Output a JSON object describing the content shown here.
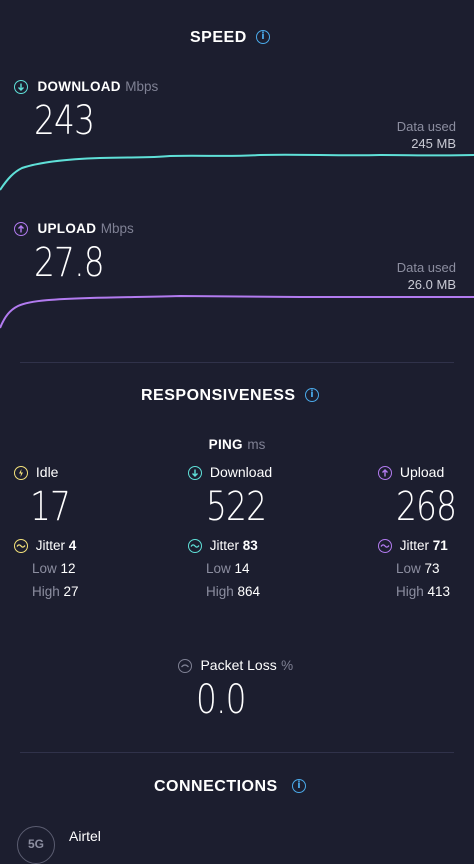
{
  "speed": {
    "title": "SPEED",
    "download": {
      "label": "DOWNLOAD",
      "unit": "Mbps",
      "value": "243",
      "data_used_label": "Data used",
      "data_used_value": "245 MB",
      "color": "#5fe0d8"
    },
    "upload": {
      "label": "UPLOAD",
      "unit": "Mbps",
      "value": "27.8",
      "data_used_label": "Data used",
      "data_used_value": "26.0 MB",
      "color": "#b27bf0"
    }
  },
  "responsiveness": {
    "title": "RESPONSIVENESS",
    "ping_label": "PING",
    "ping_unit": "ms",
    "idle": {
      "label": "Idle",
      "value": "17",
      "jitter_label": "Jitter",
      "jitter": "4",
      "low_label": "Low",
      "low": "12",
      "high_label": "High",
      "high": "27",
      "color": "#f4e27a"
    },
    "download": {
      "label": "Download",
      "value": "522",
      "jitter_label": "Jitter",
      "jitter": "83",
      "low_label": "Low",
      "low": "14",
      "high_label": "High",
      "high": "864",
      "color": "#5fe0d8"
    },
    "upload": {
      "label": "Upload",
      "value": "268",
      "jitter_label": "Jitter",
      "jitter": "71",
      "low_label": "Low",
      "low": "73",
      "high_label": "High",
      "high": "413",
      "color": "#b27bf0"
    },
    "packet_loss": {
      "label": "Packet Loss",
      "unit": "%",
      "value": "0.0"
    }
  },
  "connections": {
    "title": "CONNECTIONS",
    "badge": "5G",
    "provider": "Airtel"
  },
  "icons": {
    "info": "info-icon",
    "download": "arrow-down-icon",
    "upload": "arrow-up-icon",
    "idle": "lightning-icon",
    "jitter": "jitter-wave-icon",
    "packet_loss": "packet-loss-icon"
  }
}
